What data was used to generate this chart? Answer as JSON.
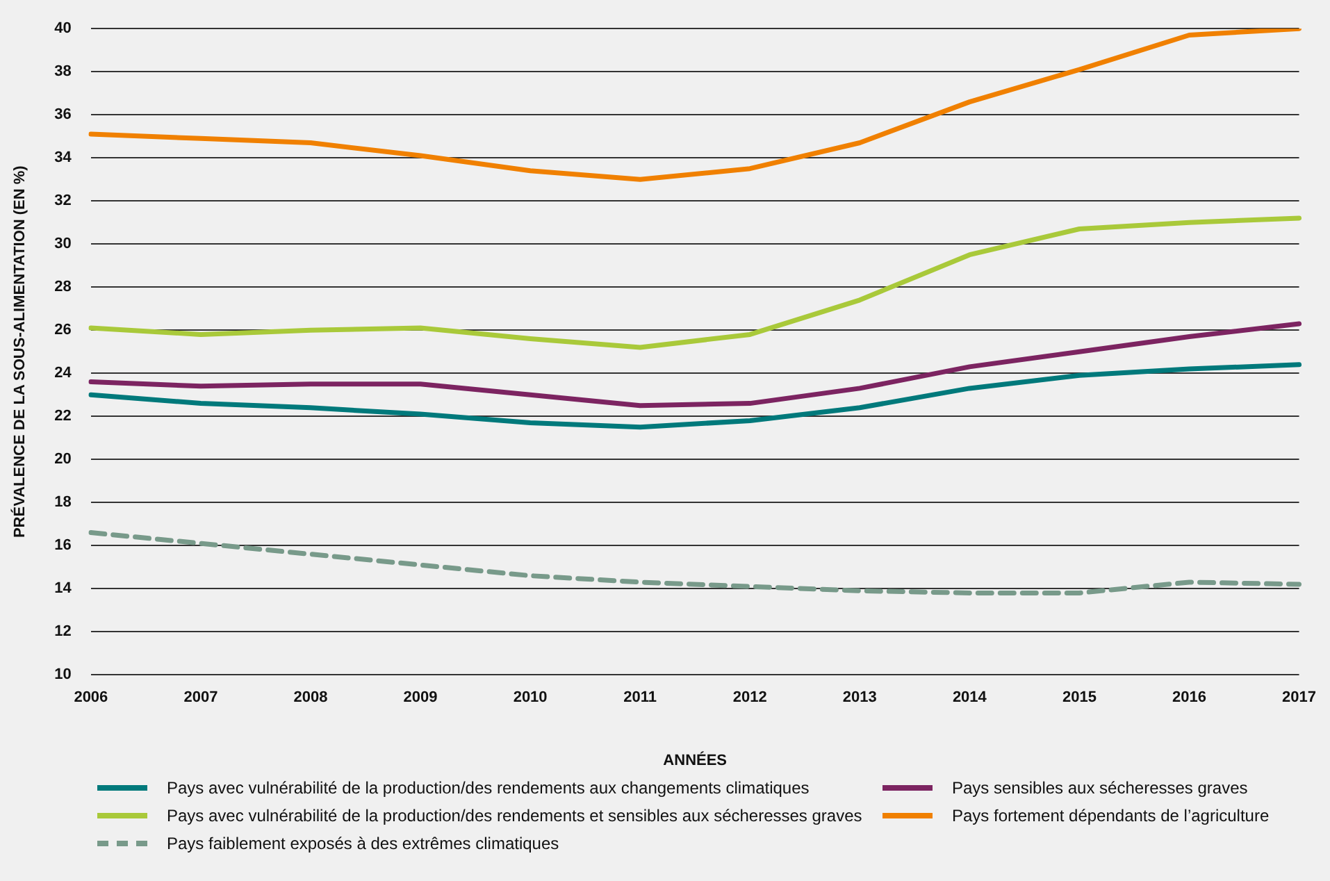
{
  "chart_data": {
    "type": "line",
    "xlabel": "ANNÉES",
    "ylabel": "PRÉVALENCE DE LA SOUS-ALIMENTATION (EN %)",
    "categories": [
      "2006",
      "2007",
      "2008",
      "2009",
      "2010",
      "2011",
      "2012",
      "2013",
      "2014",
      "2015",
      "2016",
      "2017"
    ],
    "series": [
      {
        "name": "Pays avec vulnérabilité de la production/des rendements aux changements climatiques",
        "color": "#00797b",
        "values": [
          23.0,
          22.6,
          22.4,
          22.1,
          21.7,
          21.5,
          21.8,
          22.4,
          23.3,
          23.9,
          24.2,
          24.4
        ]
      },
      {
        "name": "Pays sensibles aux sécheresses graves",
        "color": "#7c2461",
        "values": [
          23.6,
          23.4,
          23.5,
          23.5,
          23.0,
          22.5,
          22.6,
          23.3,
          24.3,
          25.0,
          25.7,
          26.3
        ]
      },
      {
        "name": "Pays avec vulnérabilité de la production/des rendements et sensibles aux sécheresses graves",
        "color": "#a9c93a",
        "values": [
          26.1,
          25.8,
          26.0,
          26.1,
          25.6,
          25.2,
          25.8,
          27.4,
          29.5,
          30.7,
          31.0,
          31.2
        ]
      },
      {
        "name": "Pays fortement dépendants de l’agriculture",
        "color": "#f08000",
        "values": [
          35.1,
          34.9,
          34.7,
          34.1,
          33.4,
          33.0,
          33.5,
          34.7,
          36.6,
          38.1,
          39.7,
          40.0
        ]
      },
      {
        "name": "Pays faiblement exposés à des extrêmes climatiques",
        "color": "#789a8a",
        "line_style": "dashed",
        "values": [
          16.6,
          16.1,
          15.6,
          15.1,
          14.6,
          14.3,
          14.1,
          13.9,
          13.8,
          13.8,
          14.3,
          14.2
        ]
      }
    ],
    "ylim": [
      10,
      40
    ],
    "yticks": [
      10,
      12,
      14,
      16,
      18,
      20,
      22,
      24,
      26,
      28,
      30,
      32,
      34,
      36,
      38,
      40
    ],
    "grid": "y",
    "legend": "bottom",
    "marker": "none"
  }
}
